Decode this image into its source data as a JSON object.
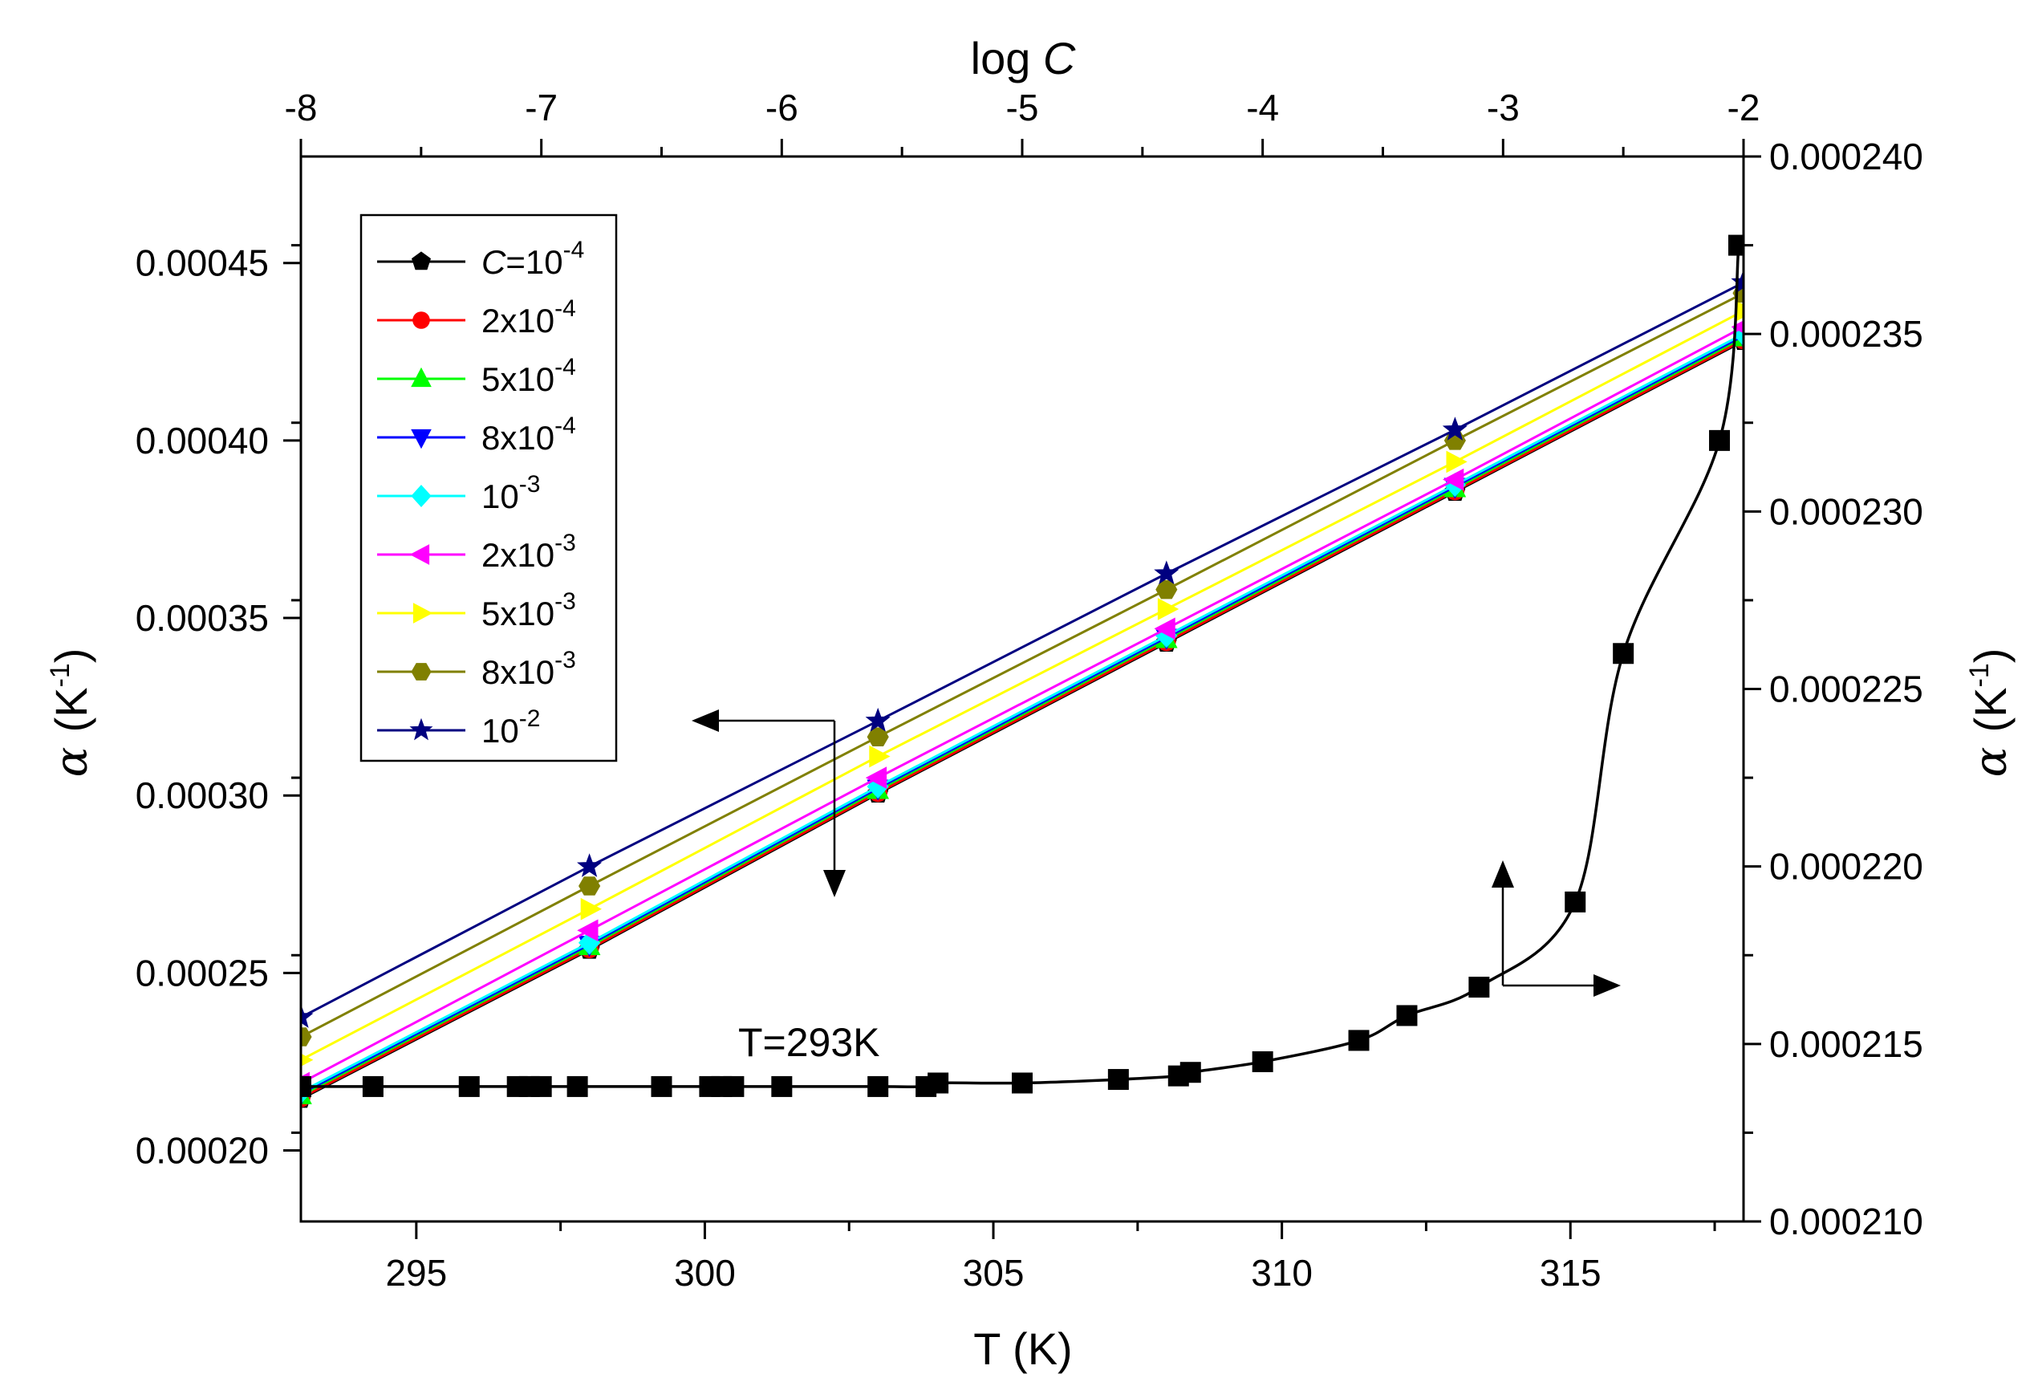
{
  "chart_data": {
    "type": "line",
    "title": "",
    "annotation": "T=293K",
    "x_bottom": {
      "label": "T (K)",
      "range": [
        293,
        318
      ],
      "ticks": [
        "295",
        "300",
        "305",
        "310",
        "315"
      ],
      "tick_values": [
        295,
        300,
        305,
        310,
        315
      ]
    },
    "x_top": {
      "label_main": "log ",
      "label_var": "C",
      "range": [
        -8,
        -2
      ],
      "ticks": [
        "-8",
        "-7",
        "-6",
        "-5",
        "-4",
        "-3",
        "-2"
      ],
      "tick_values": [
        -8,
        -7,
        -6,
        -5,
        -4,
        -3,
        -2
      ]
    },
    "y_left": {
      "label_sym": "α",
      "label_unit": "(K",
      "label_exp": "-1",
      "label_close": ")",
      "range": [
        0.00018,
        0.00048
      ],
      "ticks": [
        "0.00020",
        "0.00025",
        "0.00030",
        "0.00035",
        "0.00040",
        "0.00045"
      ],
      "tick_values": [
        0.0002,
        0.00025,
        0.0003,
        0.00035,
        0.0004,
        0.00045
      ]
    },
    "y_right": {
      "label_sym": "α",
      "label_unit": "(K",
      "label_exp": "-1",
      "label_close": ")",
      "range": [
        0.00021,
        0.00024
      ],
      "ticks": [
        "0.000210",
        "0.000215",
        "0.000220",
        "0.000225",
        "0.000230",
        "0.000235",
        "0.000240"
      ],
      "tick_values": [
        0.00021,
        0.000215,
        0.00022,
        0.000225,
        0.00023,
        0.000235,
        0.00024
      ]
    },
    "series_T": [
      {
        "legend_pre": "",
        "legend_var": "C",
        "legend_base": "=10",
        "legend_exp": "-4",
        "color": "#000000",
        "marker": "pentagon",
        "x": [
          293,
          298,
          303,
          308,
          313,
          318
        ],
        "y": [
          0.0002145,
          0.0002565,
          0.0003005,
          0.000343,
          0.0003855,
          0.000428
        ]
      },
      {
        "legend_pre": "",
        "legend_var": "",
        "legend_base": "2x10",
        "legend_exp": "-4",
        "color": "#ff0000",
        "marker": "circle",
        "x": [
          293,
          298,
          303,
          308,
          313,
          318
        ],
        "y": [
          0.0002148,
          0.0002568,
          0.0003008,
          0.0003433,
          0.0003858,
          0.0004283
        ]
      },
      {
        "legend_pre": "",
        "legend_var": "",
        "legend_base": "5x10",
        "legend_exp": "-4",
        "color": "#00ff00",
        "marker": "triangle-up",
        "x": [
          293,
          298,
          303,
          308,
          313,
          318
        ],
        "y": [
          0.0002155,
          0.0002575,
          0.0003015,
          0.000344,
          0.0003865,
          0.000429
        ]
      },
      {
        "legend_pre": "",
        "legend_var": "",
        "legend_base": "8x10",
        "legend_exp": "-4",
        "color": "#0000ff",
        "marker": "triangle-down",
        "x": [
          293,
          298,
          303,
          308,
          313,
          318
        ],
        "y": [
          0.000216,
          0.000258,
          0.000302,
          0.0003445,
          0.000387,
          0.0004295
        ]
      },
      {
        "legend_pre": "",
        "legend_var": "",
        "legend_base": "10",
        "legend_exp": "-3",
        "color": "#00ffff",
        "marker": "diamond",
        "x": [
          293,
          298,
          303,
          308,
          313,
          318
        ],
        "y": [
          0.0002165,
          0.0002585,
          0.0003025,
          0.000345,
          0.0003875,
          0.00043
        ]
      },
      {
        "legend_pre": "",
        "legend_var": "",
        "legend_base": "2x10",
        "legend_exp": "-3",
        "color": "#ff00ff",
        "marker": "triangle-left",
        "x": [
          293,
          298,
          303,
          308,
          313,
          318
        ],
        "y": [
          0.000219,
          0.000262,
          0.000305,
          0.000347,
          0.000389,
          0.000432
        ]
      },
      {
        "legend_pre": "",
        "legend_var": "",
        "legend_base": "5x10",
        "legend_exp": "-3",
        "color": "#ffff00",
        "marker": "triangle-right",
        "x": [
          293,
          298,
          303,
          308,
          313,
          318
        ],
        "y": [
          0.0002255,
          0.000268,
          0.000311,
          0.0003525,
          0.000394,
          0.0004365
        ]
      },
      {
        "legend_pre": "",
        "legend_var": "",
        "legend_base": "8x10",
        "legend_exp": "-3",
        "color": "#808000",
        "marker": "hexagon",
        "x": [
          293,
          298,
          303,
          308,
          313,
          318
        ],
        "y": [
          0.000232,
          0.0002745,
          0.0003165,
          0.000358,
          0.0004,
          0.0004415
        ]
      },
      {
        "legend_pre": "",
        "legend_var": "",
        "legend_base": "10",
        "legend_exp": "-2",
        "color": "#000080",
        "marker": "star",
        "x": [
          293,
          298,
          303,
          308,
          313,
          318
        ],
        "y": [
          0.0002375,
          0.00028,
          0.000321,
          0.0003625,
          0.000403,
          0.0004445
        ]
      }
    ],
    "series_logC": {
      "name": "T=293K",
      "color": "#000000",
      "marker": "square",
      "x": [
        -8,
        -7.7,
        -7.3,
        -7.1,
        -7.05,
        -7.0,
        -6.85,
        -6.5,
        -6.3,
        -6.25,
        -6.2,
        -6.0,
        -5.6,
        -5.4,
        -5.35,
        -5.0,
        -4.6,
        -4.35,
        -4.3,
        -4.0,
        -3.6,
        -3.4,
        -3.1,
        -2.7,
        -2.5,
        -2.1,
        -2.02
      ],
      "y": [
        0.0002138,
        0.0002138,
        0.0002138,
        0.0002138,
        0.0002138,
        0.0002138,
        0.0002138,
        0.0002138,
        0.0002138,
        0.0002138,
        0.0002138,
        0.0002138,
        0.0002138,
        0.0002138,
        0.0002139,
        0.0002139,
        0.000214,
        0.0002141,
        0.0002142,
        0.0002145,
        0.0002151,
        0.0002158,
        0.0002166,
        0.000219,
        0.000226,
        0.000232,
        0.0002375
      ]
    }
  }
}
